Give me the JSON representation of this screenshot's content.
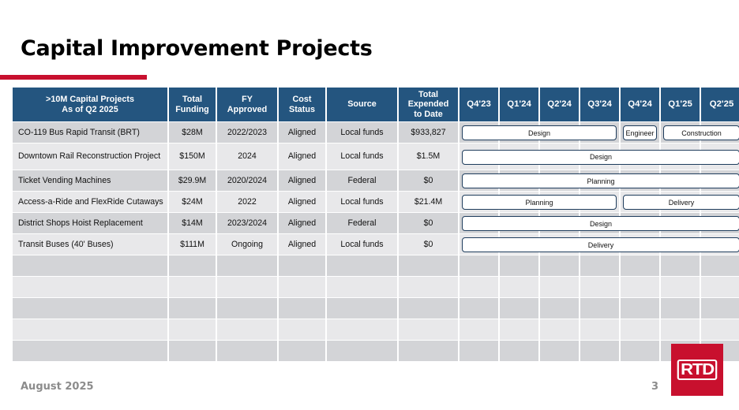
{
  "slide": {
    "title": "Capital Improvement Projects",
    "footer_date": "August 2025",
    "page_number": "3",
    "logo_text": "RTD",
    "accent_color": "#c8102e",
    "header_color": "#24557f"
  },
  "table": {
    "headers": [
      ">10M Capital Projects\nAs of Q2 2025",
      "Total\nFunding",
      "FY\nApproved",
      "Cost\nStatus",
      "Source",
      "Total\nExpended\nto Date",
      "Q4'23",
      "Q1'24",
      "Q2'24",
      "Q3'24",
      "Q4'24",
      "Q1'25",
      "Q2'25"
    ],
    "rows": [
      {
        "project": "CO-119 Bus Rapid Transit (BRT)",
        "funding": "$28M",
        "fy": "2022/2023",
        "cost": "Aligned",
        "source": "Local funds",
        "expended": "$933,827",
        "phases": [
          {
            "label": "Design",
            "start": 0,
            "end": 4
          },
          {
            "label": "Engineer",
            "start": 4,
            "end": 5
          },
          {
            "label": "Construction",
            "start": 5,
            "end": 7
          }
        ]
      },
      {
        "project": "Downtown Rail Reconstruction Project",
        "funding": "$150M",
        "fy": "2024",
        "cost": "Aligned",
        "source": "Local funds",
        "expended": "$1.5M",
        "phases": [
          {
            "label": "Design",
            "start": 0,
            "end": 7
          }
        ]
      },
      {
        "project": "Ticket Vending Machines",
        "funding": "$29.9M",
        "fy": "2020/2024",
        "cost": "Aligned",
        "source": "Federal",
        "expended": "$0",
        "phases": [
          {
            "label": "Planning",
            "start": 0,
            "end": 7
          }
        ]
      },
      {
        "project": "Access-a-Ride and FlexRide Cutaways",
        "funding": "$24M",
        "fy": "2022",
        "cost": "Aligned",
        "source": "Local funds",
        "expended": "$21.4M",
        "phases": [
          {
            "label": "Planning",
            "start": 0,
            "end": 4
          },
          {
            "label": "Delivery",
            "start": 4,
            "end": 7
          }
        ]
      },
      {
        "project": "District Shops Hoist Replacement",
        "funding": "$14M",
        "fy": "2023/2024",
        "cost": "Aligned",
        "source": "Federal",
        "expended": "$0",
        "phases": [
          {
            "label": "Design",
            "start": 0,
            "end": 7
          }
        ]
      },
      {
        "project": "Transit Buses (40' Buses)",
        "funding": "$111M",
        "fy": "Ongoing",
        "cost": "Aligned",
        "source": "Local funds",
        "expended": "$0",
        "phases": [
          {
            "label": "Delivery",
            "start": 0,
            "end": 7
          }
        ]
      }
    ],
    "empty_rows": 5
  }
}
